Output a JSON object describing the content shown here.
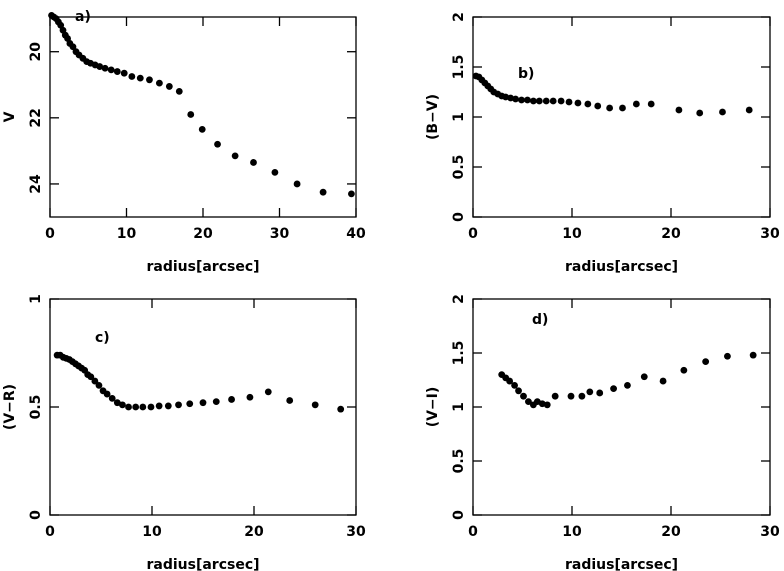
{
  "chart_data": [
    {
      "type": "scatter",
      "annotation": "a)",
      "xlabel": "radius[arcsec]",
      "ylabel": "V",
      "color": "#000000",
      "xlim": [
        0,
        40
      ],
      "xticks": [
        0,
        10,
        20,
        30,
        40
      ],
      "ylim": [
        25,
        18.95
      ],
      "yticks": [
        20,
        22,
        24
      ],
      "x": [
        0.2,
        0.5,
        0.8,
        1.1,
        1.4,
        1.7,
        2.0,
        2.3,
        2.6,
        3.0,
        3.4,
        3.8,
        4.3,
        4.8,
        5.3,
        5.9,
        6.5,
        7.2,
        8.0,
        8.8,
        9.7,
        10.7,
        11.8,
        13.0,
        14.3,
        15.6,
        16.9,
        18.4,
        19.9,
        21.9,
        24.2,
        26.6,
        29.4,
        32.3,
        35.7,
        39.4
      ],
      "values": [
        18.9,
        18.95,
        19.0,
        19.1,
        19.2,
        19.35,
        19.5,
        19.6,
        19.75,
        19.85,
        20.0,
        20.1,
        20.2,
        20.3,
        20.35,
        20.4,
        20.45,
        20.5,
        20.55,
        20.6,
        20.65,
        20.75,
        20.8,
        20.85,
        20.95,
        21.05,
        21.2,
        21.9,
        22.35,
        22.8,
        23.15,
        23.35,
        23.65,
        24.0,
        24.25,
        24.3
      ]
    },
    {
      "type": "scatter",
      "annotation": "b)",
      "xlabel": "radius[arcsec]",
      "ylabel": "(B−V)",
      "color": "#000000",
      "xlim": [
        0,
        30
      ],
      "xticks": [
        0,
        10,
        20,
        30
      ],
      "ylim": [
        0,
        2
      ],
      "yticks": [
        0,
        0.5,
        1,
        1.5,
        2
      ],
      "x": [
        0.3,
        0.6,
        0.9,
        1.2,
        1.5,
        1.8,
        2.1,
        2.5,
        2.9,
        3.3,
        3.8,
        4.3,
        4.9,
        5.5,
        6.1,
        6.7,
        7.4,
        8.1,
        8.9,
        9.7,
        10.6,
        11.6,
        12.6,
        13.8,
        15.1,
        16.5,
        18.0,
        20.8,
        22.9,
        25.2,
        27.9
      ],
      "values": [
        1.41,
        1.4,
        1.37,
        1.34,
        1.31,
        1.28,
        1.25,
        1.23,
        1.21,
        1.2,
        1.19,
        1.18,
        1.17,
        1.17,
        1.16,
        1.16,
        1.16,
        1.16,
        1.16,
        1.15,
        1.14,
        1.13,
        1.11,
        1.09,
        1.09,
        1.13,
        1.13,
        1.07,
        1.04,
        1.05,
        1.07
      ]
    },
    {
      "type": "scatter",
      "annotation": "c)",
      "xlabel": "radius[arcsec]",
      "ylabel": "(V−R)",
      "color": "#000000",
      "xlim": [
        0,
        30
      ],
      "xticks": [
        0,
        10,
        20,
        30
      ],
      "ylim": [
        0,
        1
      ],
      "yticks": [
        0,
        0.5,
        1
      ],
      "x": [
        0.7,
        1.0,
        1.3,
        1.6,
        1.9,
        2.2,
        2.5,
        2.8,
        3.1,
        3.4,
        3.7,
        4.0,
        4.4,
        4.8,
        5.2,
        5.6,
        6.1,
        6.6,
        7.1,
        7.7,
        8.4,
        9.1,
        9.9,
        10.7,
        11.6,
        12.6,
        13.7,
        15.0,
        16.3,
        17.8,
        19.6,
        21.4,
        23.5,
        26.0,
        28.5
      ],
      "values": [
        0.74,
        0.74,
        0.73,
        0.725,
        0.72,
        0.71,
        0.7,
        0.69,
        0.68,
        0.67,
        0.65,
        0.64,
        0.62,
        0.6,
        0.575,
        0.56,
        0.54,
        0.52,
        0.51,
        0.5,
        0.5,
        0.5,
        0.5,
        0.505,
        0.505,
        0.51,
        0.515,
        0.52,
        0.525,
        0.535,
        0.545,
        0.57,
        0.53,
        0.51,
        0.49
      ]
    },
    {
      "type": "scatter",
      "annotation": "d)",
      "xlabel": "radius[arcsec]",
      "ylabel": "(V−I)",
      "color": "#000000",
      "xlim": [
        0,
        30
      ],
      "xticks": [
        0,
        10,
        20,
        30
      ],
      "ylim": [
        0,
        2
      ],
      "yticks": [
        0,
        0.5,
        1,
        1.5,
        2
      ],
      "x": [
        2.9,
        3.3,
        3.7,
        4.2,
        4.6,
        5.1,
        5.6,
        6.1,
        6.5,
        7.0,
        7.5,
        8.3,
        9.9,
        11.0,
        11.8,
        12.8,
        14.2,
        15.6,
        17.3,
        19.2,
        21.3,
        23.5,
        25.7,
        28.3
      ],
      "values": [
        1.3,
        1.27,
        1.24,
        1.2,
        1.15,
        1.1,
        1.05,
        1.02,
        1.05,
        1.03,
        1.02,
        1.1,
        1.1,
        1.1,
        1.14,
        1.13,
        1.17,
        1.2,
        1.28,
        1.24,
        1.34,
        1.42,
        1.47,
        1.48
      ]
    }
  ]
}
